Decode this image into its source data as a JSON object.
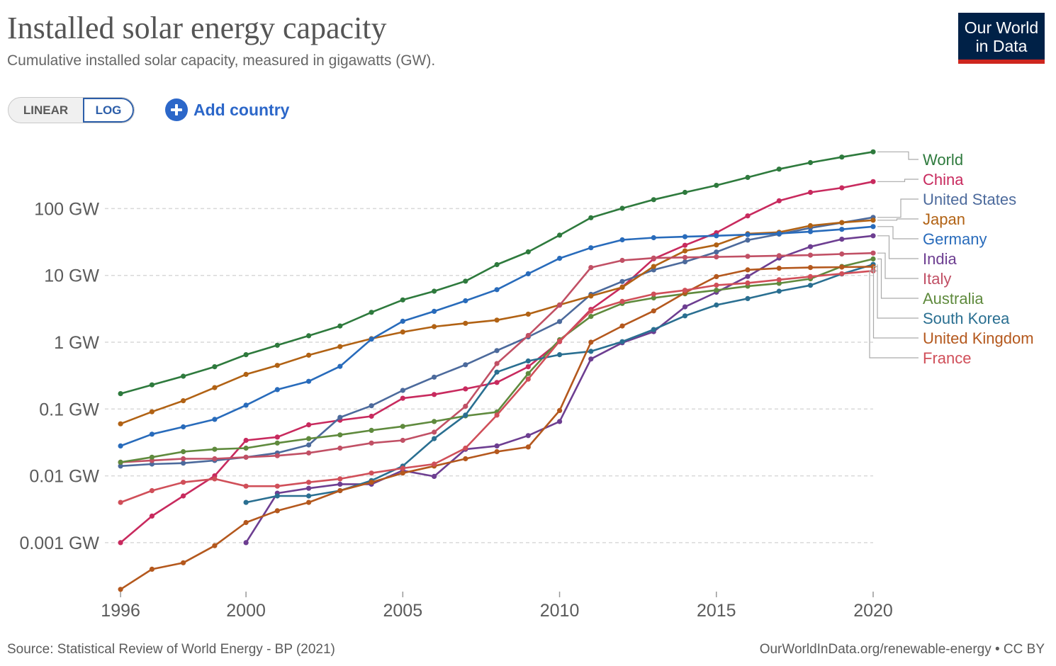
{
  "header": {
    "title": "Installed solar energy capacity",
    "subtitle": "Cumulative installed solar capacity, measured in gigawatts (GW).",
    "logo_line1": "Our World",
    "logo_line2": "in Data"
  },
  "controls": {
    "linear_label": "LINEAR",
    "log_label": "LOG",
    "add_country_label": "Add country",
    "active_scale": "log"
  },
  "footer": {
    "source": "Source: Statistical Review of World Energy - BP (2021)",
    "url": "OurWorldInData.org/renewable-energy • CC BY"
  },
  "colors": {
    "gridline": "#d9d9d9",
    "axis_text": "#5b5b5b",
    "connector": "#999999",
    "brand_blue": "#002147",
    "brand_red": "#ce261e",
    "accent": "#2c67c9"
  },
  "chart_data": {
    "type": "line",
    "scale": "log",
    "unit": "GW",
    "grid": true,
    "legend_placement": "right",
    "xlim": [
      1995.5,
      2020
    ],
    "ylim": [
      0.00015,
      800
    ],
    "x_ticks": [
      1996,
      2000,
      2005,
      2010,
      2015,
      2020
    ],
    "y_ticks": [
      {
        "value": 100,
        "label": "100 GW"
      },
      {
        "value": 10,
        "label": "10 GW"
      },
      {
        "value": 1,
        "label": "1 GW"
      },
      {
        "value": 0.1,
        "label": "0.1 GW"
      },
      {
        "value": 0.01,
        "label": "0.01 GW"
      },
      {
        "value": 0.001,
        "label": "0.001 GW"
      }
    ],
    "series": [
      {
        "name": "World",
        "color": "#2e7a3d",
        "start": 1996,
        "values": [
          0.17,
          0.23,
          0.31,
          0.43,
          0.65,
          0.9,
          1.25,
          1.75,
          2.8,
          4.3,
          5.8,
          8.2,
          14.5,
          22.5,
          40,
          73,
          101,
          136,
          175,
          223,
          293,
          390,
          488,
          590,
          707
        ]
      },
      {
        "name": "China",
        "color": "#c82a5e",
        "start": 1996,
        "values": [
          0.001,
          0.0025,
          0.005,
          0.01,
          0.034,
          0.038,
          0.058,
          0.068,
          0.078,
          0.145,
          0.165,
          0.2,
          0.25,
          0.43,
          1.02,
          3.1,
          6.7,
          17.7,
          28.2,
          43.5,
          77.8,
          130.8,
          175,
          204.7,
          253.4
        ]
      },
      {
        "name": "United States",
        "color": "#4c6a9c",
        "start": 1996,
        "values": [
          0.014,
          0.015,
          0.0155,
          0.017,
          0.019,
          0.022,
          0.029,
          0.075,
          0.112,
          0.19,
          0.3,
          0.46,
          0.75,
          1.2,
          2.04,
          5.2,
          8.1,
          12.1,
          16,
          22.4,
          33.7,
          41.4,
          51.3,
          61.5,
          73.8
        ]
      },
      {
        "name": "Japan",
        "color": "#b16214",
        "start": 1996,
        "values": [
          0.06,
          0.091,
          0.133,
          0.209,
          0.33,
          0.45,
          0.64,
          0.86,
          1.13,
          1.42,
          1.71,
          1.92,
          2.14,
          2.63,
          3.62,
          4.91,
          6.63,
          13.6,
          23.3,
          28.6,
          42.0,
          44.2,
          55.5,
          61.8,
          67.0
        ]
      },
      {
        "name": "Germany",
        "color": "#286bbb",
        "start": 1996,
        "values": [
          0.028,
          0.042,
          0.054,
          0.07,
          0.114,
          0.195,
          0.26,
          0.435,
          1.11,
          2.06,
          2.9,
          4.17,
          6.12,
          10.57,
          18,
          25.9,
          34.1,
          36.7,
          37.9,
          39.2,
          40.7,
          42.3,
          45.2,
          48.9,
          53.8
        ]
      },
      {
        "name": "India",
        "color": "#6d3e91",
        "start": 2000,
        "values": [
          0.001,
          0.0055,
          0.0065,
          0.0075,
          0.0075,
          0.012,
          0.0098,
          0.025,
          0.028,
          0.04,
          0.065,
          0.56,
          0.98,
          1.44,
          3.38,
          5.59,
          9.65,
          18.2,
          26.9,
          34.8,
          39.2
        ]
      },
      {
        "name": "Italy",
        "color": "#c15065",
        "start": 1996,
        "values": [
          0.016,
          0.017,
          0.018,
          0.018,
          0.019,
          0.02,
          0.022,
          0.026,
          0.031,
          0.034,
          0.045,
          0.11,
          0.48,
          1.26,
          3.58,
          13.1,
          16.8,
          18.2,
          18.6,
          18.9,
          19.3,
          19.7,
          20.1,
          20.9,
          21.6
        ]
      },
      {
        "name": "Australia",
        "color": "#5f8a3d",
        "start": 1996,
        "values": [
          0.016,
          0.019,
          0.023,
          0.025,
          0.026,
          0.031,
          0.036,
          0.041,
          0.048,
          0.055,
          0.065,
          0.079,
          0.09,
          0.34,
          1.09,
          2.43,
          3.8,
          4.6,
          5.3,
          6.0,
          6.9,
          7.6,
          8.9,
          13.6,
          17.6
        ]
      },
      {
        "name": "South Korea",
        "color": "#2a6f91",
        "start": 2000,
        "values": [
          0.004,
          0.005,
          0.005,
          0.006,
          0.0085,
          0.014,
          0.036,
          0.081,
          0.357,
          0.524,
          0.65,
          0.73,
          1.02,
          1.55,
          2.48,
          3.6,
          4.5,
          5.8,
          7.1,
          10.5,
          14.6
        ]
      },
      {
        "name": "United Kingdom",
        "color": "#b4581d",
        "start": 1996,
        "values": [
          0.0002,
          0.0004,
          0.0005,
          0.0009,
          0.002,
          0.003,
          0.004,
          0.006,
          0.008,
          0.011,
          0.014,
          0.018,
          0.023,
          0.027,
          0.095,
          1.0,
          1.75,
          2.94,
          5.5,
          9.6,
          12.1,
          12.8,
          13.1,
          13.3,
          13.5
        ]
      },
      {
        "name": "France",
        "color": "#d04f59",
        "start": 1996,
        "values": [
          0.004,
          0.006,
          0.008,
          0.009,
          0.007,
          0.007,
          0.008,
          0.009,
          0.011,
          0.013,
          0.015,
          0.026,
          0.081,
          0.28,
          1.04,
          2.93,
          4.08,
          5.25,
          5.99,
          7.14,
          7.7,
          8.61,
          9.6,
          10.6,
          11.7
        ]
      }
    ]
  }
}
